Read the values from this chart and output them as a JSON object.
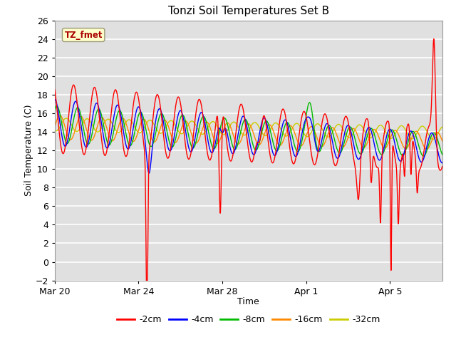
{
  "title": "Tonzi Soil Temperatures Set B",
  "xlabel": "Time",
  "ylabel": "Soil Temperature (C)",
  "ylim": [
    -2,
    26
  ],
  "yticks": [
    -2,
    0,
    2,
    4,
    6,
    8,
    10,
    12,
    14,
    16,
    18,
    20,
    22,
    24,
    26
  ],
  "bg_color": "#e0e0e0",
  "line_colors": {
    "-2cm": "#ff0000",
    "-4cm": "#0000ff",
    "-8cm": "#00bb00",
    "-16cm": "#ff8800",
    "-32cm": "#cccc00"
  },
  "legend_labels": [
    "-2cm",
    "-4cm",
    "-8cm",
    "-16cm",
    "-32cm"
  ],
  "annotation_text": "TZ_fmet",
  "annotation_color": "#aa0000",
  "annotation_bg": "#ffffcc",
  "x_tick_labels": [
    "Mar 20",
    "Mar 24",
    "Mar 28",
    "Apr 1",
    "Apr 5"
  ],
  "x_tick_positions": [
    0,
    4,
    8,
    12,
    16
  ],
  "total_days": 18.5
}
